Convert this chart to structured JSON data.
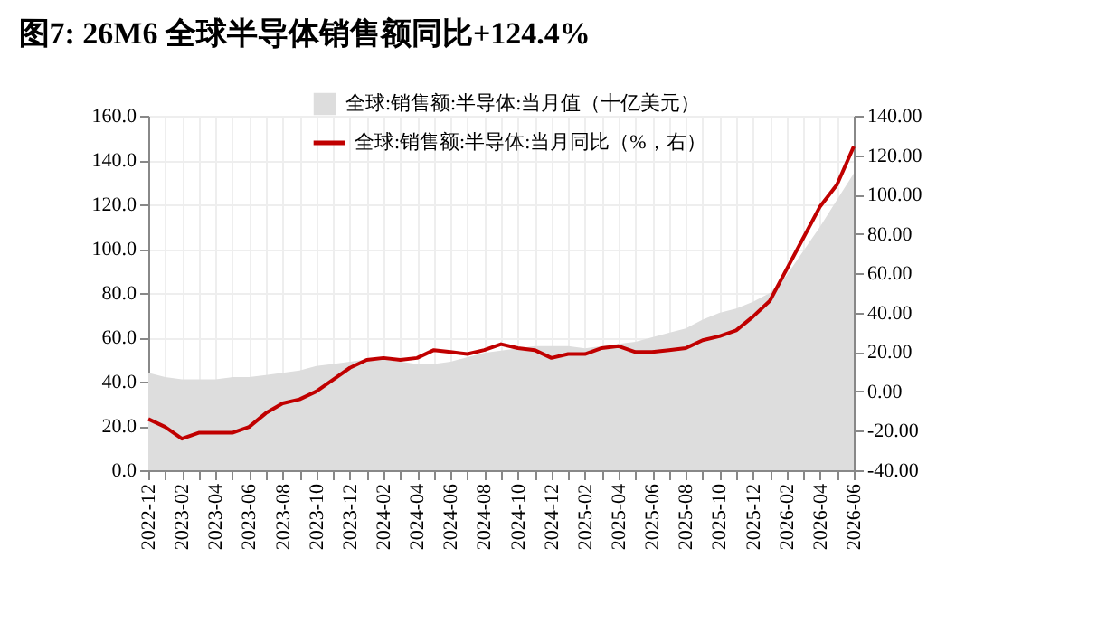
{
  "chart_data": {
    "type": "area",
    "title": "图7:  26M6 全球半导体销售额同比+124.4%",
    "categories": [
      "2022-12",
      null,
      "2023-02",
      null,
      "2023-04",
      null,
      "2023-06",
      null,
      "2023-08",
      null,
      "2023-10",
      null,
      "2023-12",
      null,
      "2024-02",
      null,
      "2024-04",
      null,
      "2024-06",
      null,
      "2024-08",
      null,
      "2024-10",
      null,
      "2024-12",
      null,
      "2025-02",
      null,
      "2025-04",
      null,
      "2025-06",
      null,
      "2025-08",
      null,
      "2025-10",
      null,
      "2025-12",
      null,
      "2026-02",
      null,
      "2026-04",
      null,
      "2026-06"
    ],
    "series": [
      {
        "name": "全球:销售额:半导体:当月值（十亿美元）",
        "color": "#dddddd",
        "values": [
          44,
          42,
          41,
          41,
          41,
          42,
          42,
          43,
          44,
          45,
          47,
          48,
          49,
          50,
          50,
          49,
          48,
          48,
          49,
          51,
          53,
          54,
          55,
          56,
          56,
          56,
          55,
          56,
          57,
          58,
          60,
          62,
          64,
          68,
          71,
          73,
          76,
          80,
          88,
          99,
          110,
          122,
          134
        ]
      },
      {
        "name": "全球:销售额:半导体:当月同比（%，右）",
        "type": "line",
        "axis": "y2",
        "color": "#c00000",
        "values": [
          -14,
          -18,
          -24,
          -21,
          -21,
          -21,
          -18,
          -11,
          -6,
          -4,
          0,
          6,
          12,
          16,
          17,
          16,
          17,
          21,
          20,
          19,
          21,
          24,
          22,
          21,
          17,
          19,
          19,
          22,
          23,
          20,
          20,
          21,
          22,
          26,
          28,
          31,
          38,
          46,
          62,
          78,
          94,
          105,
          124.4
        ]
      }
    ],
    "ylim": [
      0,
      160
    ],
    "yticks": [
      {
        "value": 0,
        "label": "0.0"
      },
      {
        "value": 20,
        "label": "20.0"
      },
      {
        "value": 40,
        "label": "40.0"
      },
      {
        "value": 60,
        "label": "60.0"
      },
      {
        "value": 80,
        "label": "80.0"
      },
      {
        "value": 100,
        "label": "100.0"
      },
      {
        "value": 120,
        "label": "120.0"
      },
      {
        "value": 140,
        "label": "140.0"
      },
      {
        "value": 160,
        "label": "160.0"
      }
    ],
    "y2lim": [
      -40,
      140
    ],
    "y2ticks": [
      {
        "value": -40,
        "label": "-40.00"
      },
      {
        "value": -20,
        "label": "-20.00"
      },
      {
        "value": 0,
        "label": "0.00"
      },
      {
        "value": 20,
        "label": "20.00"
      },
      {
        "value": 40,
        "label": "40.00"
      },
      {
        "value": 60,
        "label": "60.00"
      },
      {
        "value": 80,
        "label": "80.00"
      },
      {
        "value": 100,
        "label": "100.00"
      },
      {
        "value": 120,
        "label": "120.00"
      },
      {
        "value": 140,
        "label": "140.00"
      }
    ],
    "grid": true,
    "legend": "top"
  }
}
